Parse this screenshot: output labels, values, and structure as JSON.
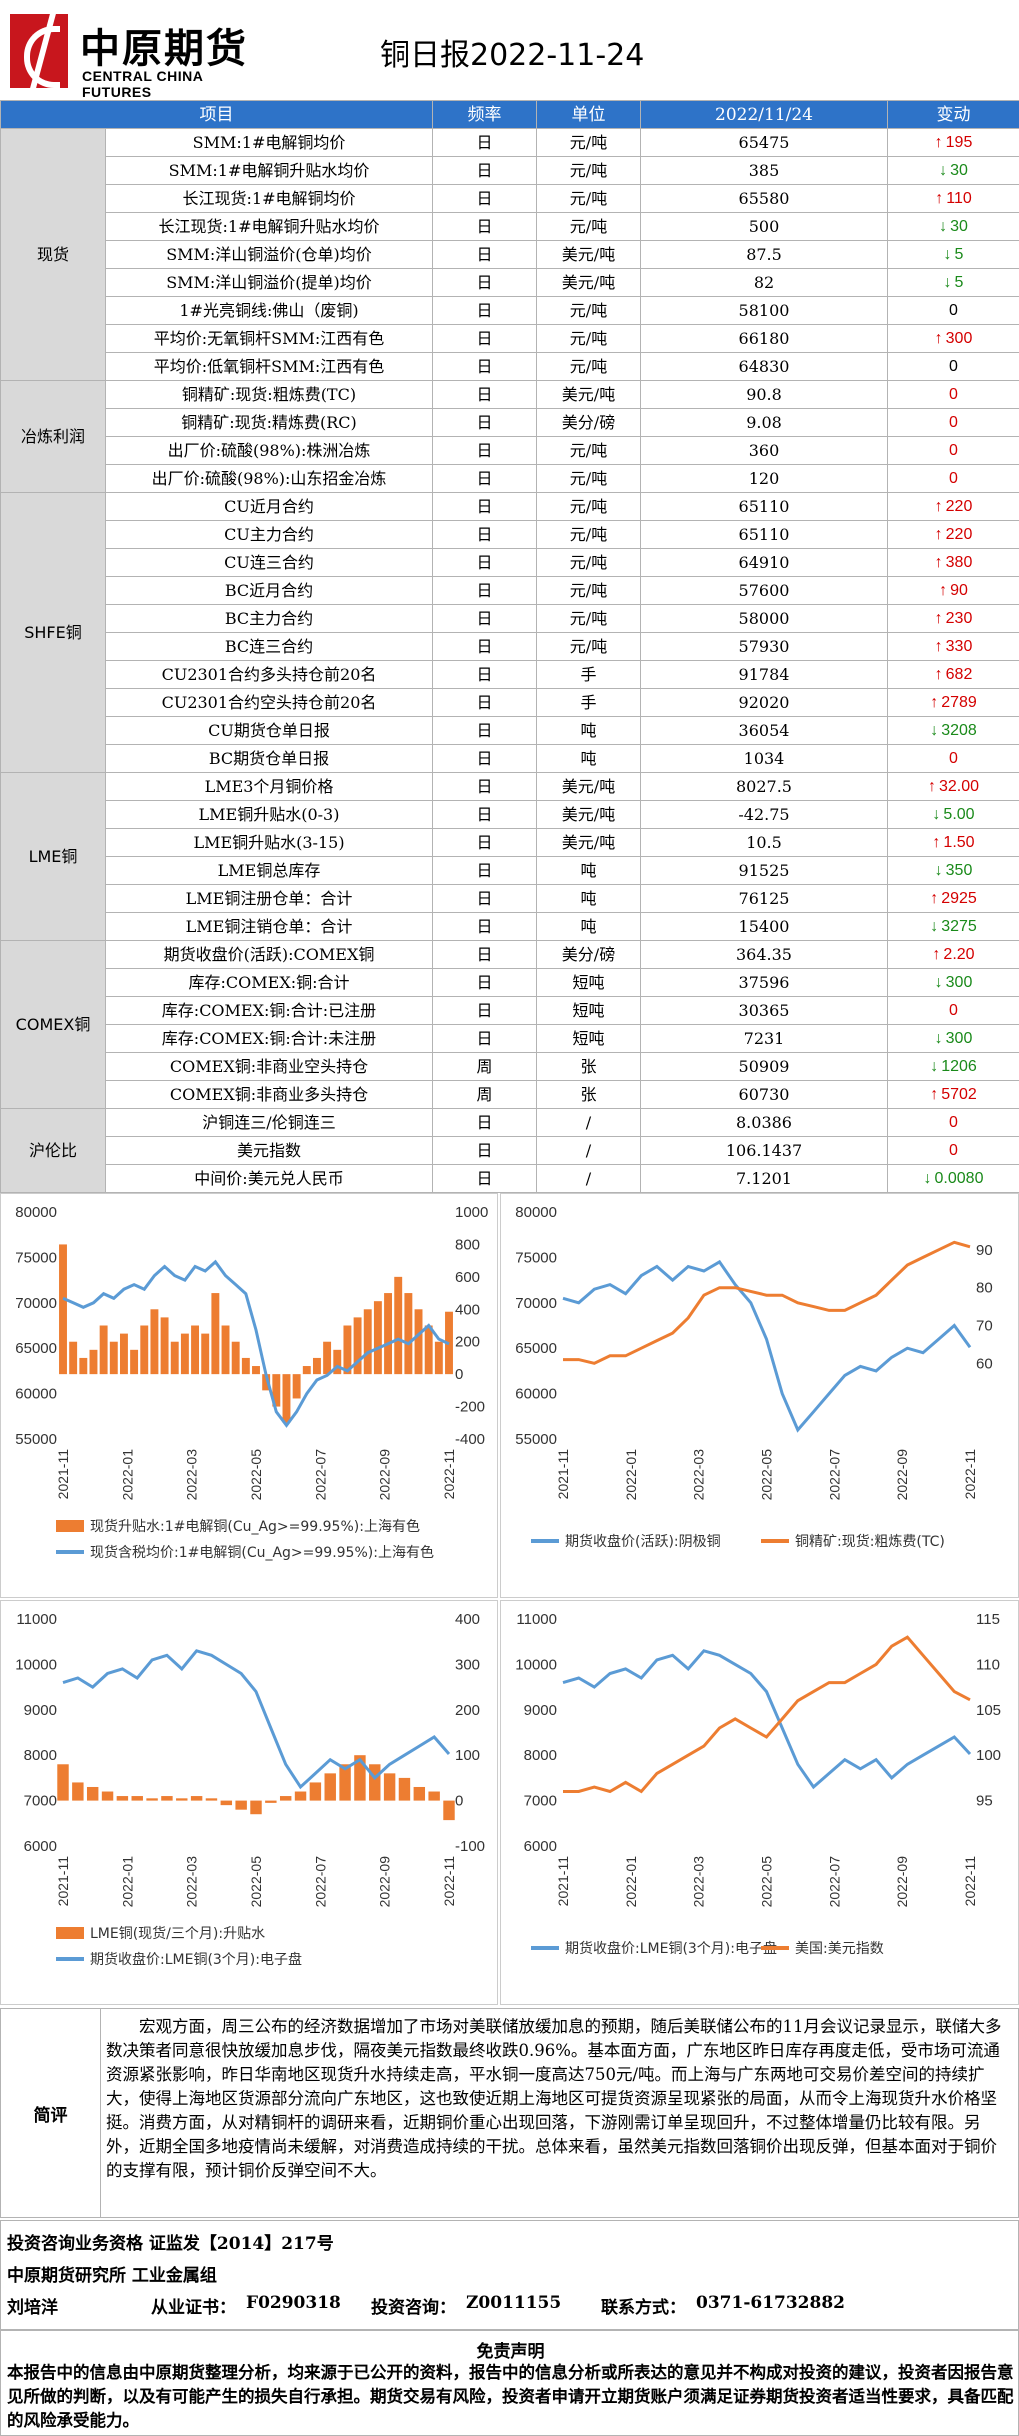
{
  "header": {
    "logo_cn": "中原期货",
    "logo_en": "CENTRAL CHINA FUTURES",
    "title": "铜日报2022-11-24"
  },
  "columns": {
    "item": "项目",
    "freq": "频率",
    "unit": "单位",
    "date": "2022/11/24",
    "change": "变动"
  },
  "colors": {
    "header_bg": "#2e73c8",
    "up": "#d40000",
    "down": "#1a8a1a",
    "orange": "#ed7d31",
    "blue": "#5b9bd5"
  },
  "groups": [
    {
      "name": "现货",
      "rows": [
        {
          "item": "SMM:1#电解铜均价",
          "freq": "日",
          "unit": "元/吨",
          "value": "65475",
          "change": "195",
          "dir": "up"
        },
        {
          "item": "SMM:1#电解铜升贴水均价",
          "freq": "日",
          "unit": "元/吨",
          "value": "385",
          "change": "30",
          "dir": "down"
        },
        {
          "item": "长江现货:1#电解铜均价",
          "freq": "日",
          "unit": "元/吨",
          "value": "65580",
          "change": "110",
          "dir": "up"
        },
        {
          "item": "长江现货:1#电解铜升贴水均价",
          "freq": "日",
          "unit": "元/吨",
          "value": "500",
          "change": "30",
          "dir": "down"
        },
        {
          "item": "SMM:洋山铜溢价(仓单)均价",
          "freq": "日",
          "unit": "美元/吨",
          "value": "87.5",
          "change": "5",
          "dir": "down"
        },
        {
          "item": "SMM:洋山铜溢价(提单)均价",
          "freq": "日",
          "unit": "美元/吨",
          "value": "82",
          "change": "5",
          "dir": "down"
        },
        {
          "item": "1#光亮铜线:佛山（废铜)",
          "freq": "日",
          "unit": "元/吨",
          "value": "58100",
          "change": "0",
          "dir": "zero"
        },
        {
          "item": "平均价:无氧铜杆SMM:江西有色",
          "freq": "日",
          "unit": "元/吨",
          "value": "66180",
          "change": "300",
          "dir": "up"
        },
        {
          "item": "平均价:低氧铜杆SMM:江西有色",
          "freq": "日",
          "unit": "元/吨",
          "value": "64830",
          "change": "0",
          "dir": "zero"
        }
      ]
    },
    {
      "name": "冶炼利润",
      "rows": [
        {
          "item": "铜精矿:现货:粗炼费(TC)",
          "freq": "日",
          "unit": "美元/吨",
          "value": "90.8",
          "change": "0",
          "dir": "zr"
        },
        {
          "item": "铜精矿:现货:精炼费(RC)",
          "freq": "日",
          "unit": "美分/磅",
          "value": "9.08",
          "change": "0",
          "dir": "zr"
        },
        {
          "item": "出厂价:硫酸(98%):株洲冶炼",
          "freq": "日",
          "unit": "元/吨",
          "value": "360",
          "change": "0",
          "dir": "zr"
        },
        {
          "item": "出厂价:硫酸(98%):山东招金冶炼",
          "freq": "日",
          "unit": "元/吨",
          "value": "120",
          "change": "0",
          "dir": "zr"
        }
      ]
    },
    {
      "name": "SHFE铜",
      "rows": [
        {
          "item": "CU近月合约",
          "freq": "日",
          "unit": "元/吨",
          "value": "65110",
          "change": "220",
          "dir": "up"
        },
        {
          "item": "CU主力合约",
          "freq": "日",
          "unit": "元/吨",
          "value": "65110",
          "change": "220",
          "dir": "up"
        },
        {
          "item": "CU连三合约",
          "freq": "日",
          "unit": "元/吨",
          "value": "64910",
          "change": "380",
          "dir": "up"
        },
        {
          "item": "BC近月合约",
          "freq": "日",
          "unit": "元/吨",
          "value": "57600",
          "change": "90",
          "dir": "up"
        },
        {
          "item": "BC主力合约",
          "freq": "日",
          "unit": "元/吨",
          "value": "58000",
          "change": "230",
          "dir": "up"
        },
        {
          "item": "BC连三合约",
          "freq": "日",
          "unit": "元/吨",
          "value": "57930",
          "change": "330",
          "dir": "up"
        },
        {
          "item": "CU2301合约多头持仓前20名",
          "freq": "日",
          "unit": "手",
          "value": "91784",
          "change": "682",
          "dir": "up"
        },
        {
          "item": "CU2301合约空头持仓前20名",
          "freq": "日",
          "unit": "手",
          "value": "92020",
          "change": "2789",
          "dir": "up"
        },
        {
          "item": "CU期货仓单日报",
          "freq": "日",
          "unit": "吨",
          "value": "36054",
          "change": "3208",
          "dir": "down"
        },
        {
          "item": "BC期货仓单日报",
          "freq": "日",
          "unit": "吨",
          "value": "1034",
          "change": "0",
          "dir": "zr"
        }
      ]
    },
    {
      "name": "LME铜",
      "rows": [
        {
          "item": "LME3个月铜价格",
          "freq": "日",
          "unit": "美元/吨",
          "value": "8027.5",
          "change": "32.00",
          "dir": "up"
        },
        {
          "item": "LME铜升贴水(0-3)",
          "freq": "日",
          "unit": "美元/吨",
          "value": "-42.75",
          "change": "5.00",
          "dir": "down"
        },
        {
          "item": "LME铜升贴水(3-15)",
          "freq": "日",
          "unit": "美元/吨",
          "value": "10.5",
          "change": "1.50",
          "dir": "up"
        },
        {
          "item": "LME铜总库存",
          "freq": "日",
          "unit": "吨",
          "value": "91525",
          "change": "350",
          "dir": "down"
        },
        {
          "item": "LME铜注册仓单：合计",
          "freq": "日",
          "unit": "吨",
          "value": "76125",
          "change": "2925",
          "dir": "up"
        },
        {
          "item": "LME铜注销仓单：合计",
          "freq": "日",
          "unit": "吨",
          "value": "15400",
          "change": "3275",
          "dir": "down"
        }
      ]
    },
    {
      "name": "COMEX铜",
      "rows": [
        {
          "item": "期货收盘价(活跃):COMEX铜",
          "freq": "日",
          "unit": "美分/磅",
          "value": "364.35",
          "change": "2.20",
          "dir": "up"
        },
        {
          "item": "库存:COMEX:铜:合计",
          "freq": "日",
          "unit": "短吨",
          "value": "37596",
          "change": "300",
          "dir": "down"
        },
        {
          "item": "库存:COMEX:铜:合计:已注册",
          "freq": "日",
          "unit": "短吨",
          "value": "30365",
          "change": "0",
          "dir": "zr"
        },
        {
          "item": "库存:COMEX:铜:合计:未注册",
          "freq": "日",
          "unit": "短吨",
          "value": "7231",
          "change": "300",
          "dir": "down"
        },
        {
          "item": "COMEX铜:非商业空头持仓",
          "freq": "周",
          "unit": "张",
          "value": "50909",
          "change": "1206",
          "dir": "down"
        },
        {
          "item": "COMEX铜:非商业多头持仓",
          "freq": "周",
          "unit": "张",
          "value": "60730",
          "change": "5702",
          "dir": "up"
        }
      ]
    },
    {
      "name": "沪伦比",
      "rows": [
        {
          "item": "沪铜连三/伦铜连三",
          "freq": "日",
          "unit": "/",
          "value": "8.0386",
          "change": "0",
          "dir": "zr"
        },
        {
          "item": "美元指数",
          "freq": "日",
          "unit": "/",
          "value": "106.1437",
          "change": "0",
          "dir": "zr"
        },
        {
          "item": "中间价:美元兑人民币",
          "freq": "日",
          "unit": "/",
          "value": "7.1201",
          "change": "0.0080",
          "dir": "down"
        }
      ]
    }
  ],
  "chart_data": [
    {
      "type": "bar",
      "title": "",
      "left_ylim": [
        55000,
        80000
      ],
      "left_ticks": [
        "80000",
        "75000",
        "70000",
        "65000",
        "60000",
        "55000"
      ],
      "right_ylim": [
        -400,
        1000
      ],
      "right_ticks": [
        "1000",
        "800",
        "600",
        "400",
        "200",
        "0",
        "-200",
        "-400"
      ],
      "x_ticks": [
        "2021-11",
        "2022-01",
        "2022-03",
        "2022-05",
        "2022-07",
        "2022-09",
        "2022-11"
      ],
      "series": [
        {
          "name": "现货升贴水:1#电解铜(Cu_Ag>=99.95%):上海有色",
          "axis": "right",
          "color": "#ed7d31"
        },
        {
          "name": "现货含税均价:1#电解铜(Cu_Ag>=99.95%):上海有色",
          "axis": "left",
          "color": "#5b9bd5"
        }
      ],
      "line_points": [
        70500,
        70000,
        69500,
        70000,
        71000,
        70500,
        71500,
        72000,
        71500,
        73000,
        74000,
        73000,
        72500,
        74000,
        73500,
        74500,
        73000,
        72000,
        71000,
        67000,
        62000,
        58000,
        56500,
        58000,
        60000,
        61500,
        62000,
        63000,
        62500,
        63500,
        64500,
        65000,
        65500,
        66000,
        65500,
        66500,
        67500,
        66000,
        65475
      ],
      "bar_points": [
        800,
        200,
        100,
        150,
        300,
        200,
        250,
        150,
        300,
        400,
        350,
        200,
        250,
        300,
        250,
        500,
        300,
        200,
        100,
        50,
        -100,
        -200,
        -300,
        -150,
        50,
        100,
        200,
        150,
        300,
        350,
        400,
        450,
        500,
        600,
        500,
        400,
        300,
        200,
        385
      ]
    },
    {
      "type": "line",
      "title": "",
      "left_ylim": [
        55000,
        80000
      ],
      "left_ticks": [
        "80000",
        "75000",
        "70000",
        "65000",
        "60000",
        "55000"
      ],
      "right_ylim": [
        40,
        100
      ],
      "right_ticks": [
        "90",
        "80",
        "70",
        "60"
      ],
      "x_ticks": [
        "2021-11",
        "2022-01",
        "2022-03",
        "2022-05",
        "2022-07",
        "2022-09",
        "2022-11"
      ],
      "series": [
        {
          "name": "期货收盘价(活跃):阴极铜",
          "axis": "left",
          "color": "#5b9bd5",
          "values": [
            70500,
            70000,
            71500,
            72000,
            71000,
            73000,
            74000,
            72500,
            74000,
            73500,
            74500,
            72000,
            70000,
            66000,
            60000,
            56000,
            58000,
            60000,
            62000,
            63000,
            62500,
            64000,
            65000,
            64500,
            66000,
            67500,
            65110
          ]
        },
        {
          "name": "铜精矿:现货:粗炼费(TC)",
          "axis": "right",
          "color": "#ed7d31",
          "values": [
            61,
            61,
            60,
            62,
            62,
            64,
            66,
            68,
            72,
            78,
            80,
            80,
            79,
            78,
            78,
            76,
            75,
            74,
            74,
            76,
            78,
            82,
            86,
            88,
            90,
            92,
            90.8
          ]
        }
      ]
    },
    {
      "type": "bar",
      "title": "",
      "left_ylim": [
        6000,
        11000
      ],
      "left_ticks": [
        "11000",
        "10000",
        "9000",
        "8000",
        "7000",
        "6000"
      ],
      "right_ylim": [
        -100,
        400
      ],
      "right_ticks": [
        "400",
        "300",
        "200",
        "100",
        "0",
        "-100"
      ],
      "x_ticks": [
        "2021-11",
        "2022-01",
        "2022-03",
        "2022-05",
        "2022-07",
        "2022-09",
        "2022-11"
      ],
      "series": [
        {
          "name": "LME铜(现货/三个月):升贴水",
          "axis": "right",
          "color": "#ed7d31"
        },
        {
          "name": "期货收盘价:LME铜(3个月):电子盘",
          "axis": "left",
          "color": "#5b9bd5"
        }
      ],
      "line_points": [
        9600,
        9700,
        9500,
        9800,
        9900,
        9700,
        10100,
        10200,
        9900,
        10300,
        10200,
        10000,
        9800,
        9400,
        8600,
        7800,
        7300,
        7600,
        7900,
        7700,
        7900,
        7500,
        7800,
        8000,
        8200,
        8400,
        8027
      ],
      "bar_points": [
        80,
        40,
        30,
        20,
        10,
        10,
        5,
        10,
        5,
        10,
        5,
        -10,
        -20,
        -30,
        -5,
        10,
        20,
        40,
        60,
        80,
        100,
        80,
        60,
        50,
        30,
        20,
        -43
      ]
    },
    {
      "type": "line",
      "title": "",
      "left_ylim": [
        6000,
        11000
      ],
      "left_ticks": [
        "11000",
        "10000",
        "9000",
        "8000",
        "7000",
        "6000"
      ],
      "right_ylim": [
        90,
        115
      ],
      "right_ticks": [
        "115",
        "110",
        "105",
        "100",
        "95"
      ],
      "x_ticks": [
        "2021-11",
        "2022-01",
        "2022-03",
        "2022-05",
        "2022-07",
        "2022-09",
        "2022-11"
      ],
      "series": [
        {
          "name": "期货收盘价:LME铜(3个月):电子盘",
          "axis": "left",
          "color": "#5b9bd5",
          "values": [
            9600,
            9700,
            9500,
            9800,
            9900,
            9700,
            10100,
            10200,
            9900,
            10300,
            10200,
            10000,
            9800,
            9400,
            8600,
            7800,
            7300,
            7600,
            7900,
            7700,
            7900,
            7500,
            7800,
            8000,
            8200,
            8400,
            8027
          ]
        },
        {
          "name": "美国:美元指数",
          "axis": "right",
          "color": "#ed7d31",
          "values": [
            96,
            96,
            96.5,
            96,
            97,
            96,
            98,
            99,
            100,
            101,
            103,
            104,
            103,
            102,
            104,
            106,
            107,
            108,
            108,
            109,
            110,
            112,
            113,
            111,
            109,
            107,
            106.1
          ]
        }
      ]
    }
  ],
  "summary": {
    "label": "简评",
    "text": "宏观方面，周三公布的经济数据增加了市场对美联储放缓加息的预期，随后美联储公布的11月会议记录显示，联储大多数决策者同意很快放缓加息步伐，隔夜美元指数最终收跌0.96%。基本面方面，广东地区昨日库存再度走低，受市场可流通资源紧张影响，昨日华南地区现货升水持续走高，平水铜一度高达750元/吨。而上海与广东两地可交易价差空间的持续扩大，使得上海地区货源部分流向广东地区，这也致使近期上海地区可提货资源呈现紧张的局面，从而令上海现货升水价格坚挺。消费方面，从对精铜杆的调研来看，近期铜价重心出现回落，下游刚需订单呈现回升，不过整体增量仍比较有限。另外，近期全国多地疫情尚未缓解，对消费造成持续的干扰。总体来看，虽然美元指数回落铜价出现反弹，但基本面对于铜价的支撑有限，预计铜价反弹空间不大。"
  },
  "info": {
    "qualification": "投资咨询业务资格   证监发【2014】217号",
    "org": "中原期货研究所   工业金属组",
    "analyst": "刘培洋",
    "license_label": "从业证书：",
    "license": "F0290318",
    "consult_label": "投资咨询：",
    "consult": "Z0011155",
    "contact_label": "联系方式：",
    "contact": "0371-61732882"
  },
  "disclaimer": {
    "title": "免责声明",
    "text": "本报告中的信息由中原期货整理分析，均来源于已公开的资料，报告中的信息分析或所表达的意见并不构成对投资的建议，投资者因报告意见所做的判断，以及有可能产生的损失自行承担。期货交易有风险，投资者申请开立期货账户须满足证券期货投资者适当性要求，具备匹配的风险承受能力。"
  }
}
